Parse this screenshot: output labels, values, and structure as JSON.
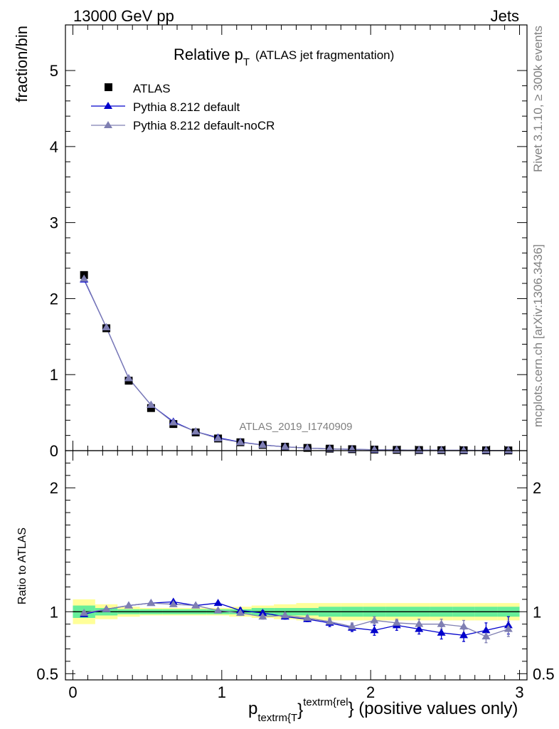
{
  "header": {
    "left": "13000 GeV pp",
    "right": "Jets"
  },
  "side_labels": {
    "top": "Rivet 3.1.10, ≥ 300k events",
    "bottom": "mcplots.cern.ch [arXiv:1306.3436]"
  },
  "watermark": "ATLAS_2019_I1740909",
  "colors": {
    "atlas": "#000000",
    "default": "#0000cc",
    "nocr": "#7f7fb2",
    "band_inner": "#66ee99",
    "band_outer": "#ffff99",
    "ref_line": "#000000"
  },
  "chart_data": [
    {
      "type": "scatter",
      "panel": "main",
      "title_main": "Relative p",
      "title_sub": "T",
      "title_note": "(ATLAS jet fragmentation)",
      "ylabel": "fraction/bin",
      "ylim": [
        0,
        5.6
      ],
      "xlim": [
        -0.05,
        3.05
      ],
      "yticks": [
        0,
        1,
        2,
        3,
        4,
        5
      ],
      "ytick_labels": [
        "0",
        "1",
        "2",
        "3",
        "4",
        "5"
      ],
      "legend": [
        "ATLAS",
        "Pythia 8.212 default",
        "Pythia 8.212 default-noCR"
      ],
      "x": [
        0.075,
        0.225,
        0.375,
        0.525,
        0.675,
        0.825,
        0.975,
        1.125,
        1.275,
        1.425,
        1.575,
        1.725,
        1.875,
        2.025,
        2.175,
        2.325,
        2.475,
        2.625,
        2.775,
        2.925
      ],
      "series": [
        {
          "name": "ATLAS",
          "values": [
            2.31,
            1.61,
            0.92,
            0.56,
            0.35,
            0.24,
            0.16,
            0.11,
            0.075,
            0.052,
            0.036,
            0.026,
            0.019,
            0.014,
            0.01,
            0.008,
            0.006,
            0.005,
            0.004,
            0.003
          ]
        },
        {
          "name": "Pythia 8.212 default",
          "values": [
            2.25,
            1.62,
            0.95,
            0.6,
            0.38,
            0.25,
            0.17,
            0.112,
            0.075,
            0.05,
            0.034,
            0.024,
            0.017,
            0.012,
            0.009,
            0.007,
            0.005,
            0.004,
            0.003,
            0.003
          ]
        },
        {
          "name": "Pythia 8.212 default-noCR",
          "values": [
            2.26,
            1.62,
            0.95,
            0.6,
            0.37,
            0.25,
            0.16,
            0.109,
            0.073,
            0.05,
            0.034,
            0.024,
            0.017,
            0.013,
            0.009,
            0.007,
            0.005,
            0.004,
            0.003,
            0.003
          ]
        }
      ]
    },
    {
      "type": "line",
      "panel": "ratio",
      "ylabel": "Ratio to ATLAS",
      "xlabel_main": "p",
      "xlabel_sub": "textrm{T",
      "xlabel_sup": "textrm{rel",
      "xlabel_tail": "} (positive values only)",
      "xlabel_brace": "}",
      "ylim": [
        0.45,
        2.3
      ],
      "xlim": [
        -0.05,
        3.05
      ],
      "yticks": [
        0.5,
        1,
        2
      ],
      "ytick_labels": [
        "0.5",
        "1",
        "2"
      ],
      "xticks": [
        0,
        1,
        2,
        3
      ],
      "xtick_labels": [
        "0",
        "1",
        "2",
        "3"
      ],
      "x": [
        0.075,
        0.225,
        0.375,
        0.525,
        0.675,
        0.825,
        0.975,
        1.125,
        1.275,
        1.425,
        1.575,
        1.725,
        1.875,
        2.025,
        2.175,
        2.325,
        2.475,
        2.625,
        2.775,
        2.925
      ],
      "band_inner": [
        0.05,
        0.03,
        0.02,
        0.02,
        0.02,
        0.02,
        0.02,
        0.02,
        0.03,
        0.03,
        0.03,
        0.04,
        0.04,
        0.04,
        0.04,
        0.04,
        0.04,
        0.04,
        0.04,
        0.04
      ],
      "band_outer": [
        0.1,
        0.06,
        0.04,
        0.03,
        0.03,
        0.03,
        0.03,
        0.04,
        0.05,
        0.06,
        0.07,
        0.07,
        0.07,
        0.07,
        0.07,
        0.07,
        0.07,
        0.07,
        0.07,
        0.07
      ],
      "series": [
        {
          "name": "Pythia 8.212 default",
          "values": [
            0.98,
            1.02,
            1.05,
            1.07,
            1.08,
            1.05,
            1.07,
            1.01,
            0.99,
            0.96,
            0.94,
            0.91,
            0.87,
            0.85,
            0.89,
            0.86,
            0.83,
            0.81,
            0.85,
            0.89
          ],
          "errors": [
            0.01,
            0.01,
            0.01,
            0.01,
            0.01,
            0.01,
            0.01,
            0.02,
            0.02,
            0.02,
            0.02,
            0.03,
            0.03,
            0.04,
            0.04,
            0.04,
            0.05,
            0.05,
            0.06,
            0.07
          ]
        },
        {
          "name": "Pythia 8.212 default-noCR",
          "values": [
            0.99,
            1.02,
            1.05,
            1.07,
            1.06,
            1.05,
            1.01,
            0.99,
            0.96,
            0.97,
            0.95,
            0.92,
            0.88,
            0.93,
            0.91,
            0.9,
            0.9,
            0.88,
            0.8,
            0.86
          ],
          "errors": [
            0.01,
            0.01,
            0.01,
            0.01,
            0.01,
            0.01,
            0.01,
            0.02,
            0.02,
            0.02,
            0.02,
            0.03,
            0.03,
            0.03,
            0.03,
            0.04,
            0.04,
            0.05,
            0.05,
            0.06
          ]
        }
      ]
    }
  ]
}
